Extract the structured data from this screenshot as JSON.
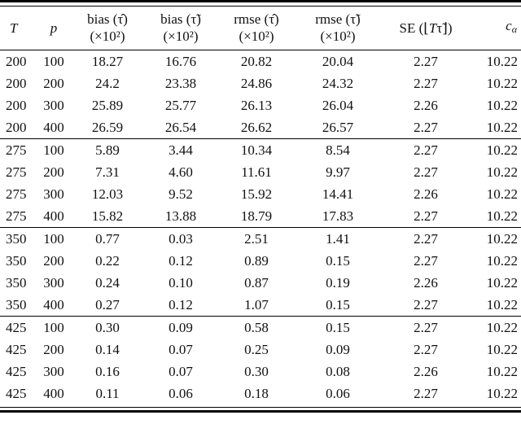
{
  "table": {
    "description_visible": false,
    "header": {
      "T": "T",
      "p": "p",
      "bias_hat": "bias (τ̂)",
      "bias_tilde": "bias (τ̃)",
      "rmse_hat": "rmse (τ̂)",
      "rmse_tilde": "rmse (τ̃)",
      "scale": "(×10²)",
      "se_pre": "SE (⌊",
      "se_T": "T",
      "se_post": "τ̃⌋)",
      "c": "c",
      "alpha": "α"
    },
    "blocks": [
      {
        "rows": [
          [
            "200",
            "100",
            "18.27",
            "16.76",
            "20.82",
            "20.04",
            "2.27",
            "10.22"
          ],
          [
            "200",
            "200",
            "24.2",
            "23.38",
            "24.86",
            "24.32",
            "2.27",
            "10.22"
          ],
          [
            "200",
            "300",
            "25.89",
            "25.77",
            "26.13",
            "26.04",
            "2.26",
            "10.22"
          ],
          [
            "200",
            "400",
            "26.59",
            "26.54",
            "26.62",
            "26.57",
            "2.27",
            "10.22"
          ]
        ]
      },
      {
        "rows": [
          [
            "275",
            "100",
            "5.89",
            "3.44",
            "10.34",
            "8.54",
            "2.27",
            "10.22"
          ],
          [
            "275",
            "200",
            "7.31",
            "4.60",
            "11.61",
            "9.97",
            "2.27",
            "10.22"
          ],
          [
            "275",
            "300",
            "12.03",
            "9.52",
            "15.92",
            "14.41",
            "2.26",
            "10.22"
          ],
          [
            "275",
            "400",
            "15.82",
            "13.88",
            "18.79",
            "17.83",
            "2.27",
            "10.22"
          ]
        ]
      },
      {
        "rows": [
          [
            "350",
            "100",
            "0.77",
            "0.03",
            "2.51",
            "1.41",
            "2.27",
            "10.22"
          ],
          [
            "350",
            "200",
            "0.22",
            "0.12",
            "0.89",
            "0.15",
            "2.27",
            "10.22"
          ],
          [
            "350",
            "300",
            "0.24",
            "0.10",
            "0.87",
            "0.19",
            "2.26",
            "10.22"
          ],
          [
            "350",
            "400",
            "0.27",
            "0.12",
            "1.07",
            "0.15",
            "2.27",
            "10.22"
          ]
        ]
      },
      {
        "rows": [
          [
            "425",
            "100",
            "0.30",
            "0.09",
            "0.58",
            "0.15",
            "2.27",
            "10.22"
          ],
          [
            "425",
            "200",
            "0.14",
            "0.07",
            "0.25",
            "0.09",
            "2.27",
            "10.22"
          ],
          [
            "425",
            "300",
            "0.16",
            "0.07",
            "0.30",
            "0.08",
            "2.26",
            "10.22"
          ],
          [
            "425",
            "400",
            "0.11",
            "0.06",
            "0.18",
            "0.06",
            "2.27",
            "10.22"
          ]
        ]
      }
    ],
    "colors": {
      "text": "#111111",
      "rule": "#000000",
      "background": "#ffffff"
    }
  }
}
